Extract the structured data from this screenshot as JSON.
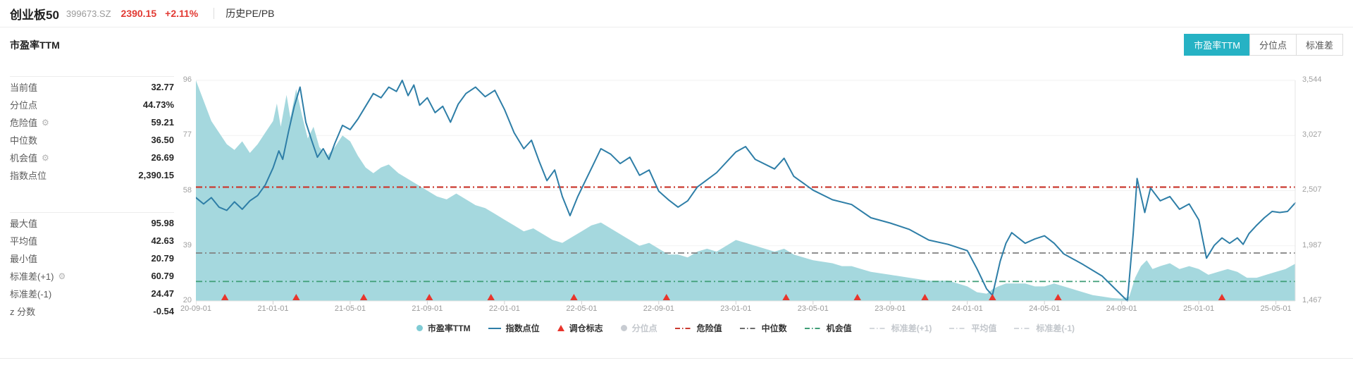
{
  "header": {
    "title": "创业板50",
    "code": "399673.SZ",
    "price": "2390.15",
    "change": "+2.11%",
    "menu": "历史PE/PB"
  },
  "section": {
    "title": "市盈率TTM"
  },
  "tabs": [
    {
      "key": "pe-ttm",
      "label": "市盈率TTM",
      "active": true
    },
    {
      "key": "percentile",
      "label": "分位点",
      "active": false
    },
    {
      "key": "std",
      "label": "标准差",
      "active": false
    }
  ],
  "stats": {
    "group1": [
      {
        "label": "当前值",
        "value": "32.77",
        "gear": false
      },
      {
        "label": "分位点",
        "value": "44.73%",
        "gear": false
      },
      {
        "label": "危险值",
        "value": "59.21",
        "gear": true
      },
      {
        "label": "中位数",
        "value": "36.50",
        "gear": false
      },
      {
        "label": "机会值",
        "value": "26.69",
        "gear": true
      },
      {
        "label": "指数点位",
        "value": "2,390.15",
        "gear": false
      }
    ],
    "group2": [
      {
        "label": "最大值",
        "value": "95.98",
        "gear": false
      },
      {
        "label": "平均值",
        "value": "42.63",
        "gear": false
      },
      {
        "label": "最小值",
        "value": "20.79",
        "gear": false
      },
      {
        "label": "标准差(+1)",
        "value": "60.79",
        "gear": true
      },
      {
        "label": "标准差(-1)",
        "value": "24.47",
        "gear": false
      },
      {
        "label": "z 分数",
        "value": "-0.54",
        "gear": false
      }
    ]
  },
  "chart_data": {
    "type": "area",
    "x_unit": "months since 2020-09-01",
    "x_domain": [
      0,
      57
    ],
    "x_ticks": {
      "positions": [
        0,
        4,
        8,
        12,
        16,
        20,
        24,
        28,
        32,
        36,
        40,
        44,
        48,
        52,
        56
      ],
      "labels": [
        "20-09-01",
        "21-01-01",
        "21-05-01",
        "21-09-01",
        "22-01-01",
        "22-05-01",
        "22-09-01",
        "23-01-01",
        "23-05-01",
        "23-09-01",
        "24-01-01",
        "24-05-01",
        "24-09-01",
        "25-01-01",
        "25-05-01"
      ]
    },
    "y_left": {
      "ticks": [
        96,
        77,
        58,
        39,
        20
      ],
      "labels": [
        "96",
        "77",
        "58",
        "39",
        "20"
      ],
      "range": [
        20,
        96
      ]
    },
    "y_right": {
      "ticks": [
        3544,
        3027,
        2507,
        1987,
        1467
      ],
      "labels": [
        "3,544",
        "3,027",
        "2,507",
        "1,987",
        "1,467"
      ],
      "range": [
        1467,
        3544
      ]
    },
    "reference_lines": [
      {
        "name": "危险值",
        "value": 59.21,
        "color": "#cb3b31",
        "width": 2.2
      },
      {
        "name": "中位数",
        "value": 36.5,
        "color": "#818181",
        "width": 1.8
      },
      {
        "name": "机会值",
        "value": 26.69,
        "color": "#3f9e77",
        "width": 1.8
      }
    ],
    "series": [
      {
        "name": "市盈率TTM",
        "type": "area",
        "axis": "left",
        "color": "#a5d8de",
        "points": [
          [
            0,
            96
          ],
          [
            0.4,
            89
          ],
          [
            0.8,
            82
          ],
          [
            1.2,
            78
          ],
          [
            1.6,
            74
          ],
          [
            2,
            72
          ],
          [
            2.4,
            75
          ],
          [
            2.8,
            71
          ],
          [
            3.2,
            74
          ],
          [
            3.6,
            78
          ],
          [
            4,
            82
          ],
          [
            4.2,
            88
          ],
          [
            4.4,
            80
          ],
          [
            4.7,
            91
          ],
          [
            4.9,
            83
          ],
          [
            5.2,
            93
          ],
          [
            5.5,
            84
          ],
          [
            5.8,
            76
          ],
          [
            6.1,
            80
          ],
          [
            6.4,
            73
          ],
          [
            6.8,
            70
          ],
          [
            7.2,
            73
          ],
          [
            7.6,
            77
          ],
          [
            8,
            75
          ],
          [
            8.4,
            70
          ],
          [
            8.8,
            66
          ],
          [
            9.2,
            64
          ],
          [
            9.6,
            66
          ],
          [
            10,
            67
          ],
          [
            10.5,
            64
          ],
          [
            11,
            62
          ],
          [
            11.5,
            60
          ],
          [
            12,
            58
          ],
          [
            12.5,
            56
          ],
          [
            13,
            55
          ],
          [
            13.5,
            57
          ],
          [
            14,
            55
          ],
          [
            14.5,
            53
          ],
          [
            15,
            52
          ],
          [
            15.5,
            50
          ],
          [
            16,
            48
          ],
          [
            16.5,
            46
          ],
          [
            17,
            44
          ],
          [
            17.5,
            45
          ],
          [
            18,
            43
          ],
          [
            18.5,
            41
          ],
          [
            19,
            40
          ],
          [
            19.5,
            42
          ],
          [
            20,
            44
          ],
          [
            20.5,
            46
          ],
          [
            21,
            47
          ],
          [
            21.5,
            45
          ],
          [
            22,
            43
          ],
          [
            22.5,
            41
          ],
          [
            23,
            39
          ],
          [
            23.5,
            40
          ],
          [
            24,
            38
          ],
          [
            24.5,
            36
          ],
          [
            25,
            36
          ],
          [
            25.5,
            35
          ],
          [
            26,
            37
          ],
          [
            26.5,
            38
          ],
          [
            27,
            37
          ],
          [
            27.5,
            39
          ],
          [
            28,
            41
          ],
          [
            28.5,
            40
          ],
          [
            29,
            39
          ],
          [
            29.5,
            38
          ],
          [
            30,
            37
          ],
          [
            30.5,
            38
          ],
          [
            31,
            36
          ],
          [
            31.5,
            35
          ],
          [
            32,
            34
          ],
          [
            33,
            33
          ],
          [
            33.5,
            32
          ],
          [
            34,
            32
          ],
          [
            34.5,
            31
          ],
          [
            35,
            30
          ],
          [
            36,
            29
          ],
          [
            37,
            28
          ],
          [
            38,
            27
          ],
          [
            39,
            27
          ],
          [
            39.5,
            26
          ],
          [
            40,
            25
          ],
          [
            40.5,
            23
          ],
          [
            41,
            22.5
          ],
          [
            41.3,
            24
          ],
          [
            41.6,
            25
          ],
          [
            42,
            26
          ],
          [
            42.5,
            26
          ],
          [
            43,
            26
          ],
          [
            43.5,
            25
          ],
          [
            44,
            25
          ],
          [
            44.5,
            26
          ],
          [
            45,
            25
          ],
          [
            45.5,
            24
          ],
          [
            46,
            23
          ],
          [
            46.5,
            22
          ],
          [
            47,
            21.5
          ],
          [
            47.5,
            21
          ],
          [
            48,
            20.8
          ],
          [
            48.4,
            21.5
          ],
          [
            48.7,
            28
          ],
          [
            49,
            32
          ],
          [
            49.3,
            34
          ],
          [
            49.6,
            31
          ],
          [
            50,
            32
          ],
          [
            50.5,
            33
          ],
          [
            51,
            31
          ],
          [
            51.5,
            32
          ],
          [
            52,
            31
          ],
          [
            52.5,
            29
          ],
          [
            53,
            30
          ],
          [
            53.5,
            31
          ],
          [
            54,
            30
          ],
          [
            54.5,
            28
          ],
          [
            55,
            28
          ],
          [
            55.5,
            29
          ],
          [
            56,
            30
          ],
          [
            56.5,
            31
          ],
          [
            57,
            32.8
          ]
        ]
      },
      {
        "name": "指数点位",
        "type": "line",
        "axis": "right",
        "color": "#2e7ea7",
        "points": [
          [
            0,
            2440
          ],
          [
            0.4,
            2380
          ],
          [
            0.8,
            2440
          ],
          [
            1.2,
            2350
          ],
          [
            1.6,
            2320
          ],
          [
            2,
            2400
          ],
          [
            2.4,
            2330
          ],
          [
            2.8,
            2410
          ],
          [
            3.2,
            2460
          ],
          [
            3.6,
            2560
          ],
          [
            4,
            2720
          ],
          [
            4.3,
            2880
          ],
          [
            4.5,
            2800
          ],
          [
            4.8,
            3060
          ],
          [
            5.1,
            3300
          ],
          [
            5.4,
            3480
          ],
          [
            5.7,
            3150
          ],
          [
            6,
            2980
          ],
          [
            6.3,
            2820
          ],
          [
            6.6,
            2900
          ],
          [
            6.9,
            2800
          ],
          [
            7.2,
            2950
          ],
          [
            7.6,
            3120
          ],
          [
            8,
            3080
          ],
          [
            8.4,
            3180
          ],
          [
            8.8,
            3300
          ],
          [
            9.2,
            3420
          ],
          [
            9.6,
            3380
          ],
          [
            10,
            3480
          ],
          [
            10.4,
            3440
          ],
          [
            10.7,
            3544
          ],
          [
            11,
            3400
          ],
          [
            11.3,
            3500
          ],
          [
            11.6,
            3310
          ],
          [
            12,
            3380
          ],
          [
            12.4,
            3240
          ],
          [
            12.8,
            3300
          ],
          [
            13.2,
            3150
          ],
          [
            13.6,
            3320
          ],
          [
            14,
            3420
          ],
          [
            14.5,
            3480
          ],
          [
            15,
            3390
          ],
          [
            15.5,
            3450
          ],
          [
            16,
            3270
          ],
          [
            16.5,
            3050
          ],
          [
            17,
            2900
          ],
          [
            17.4,
            2980
          ],
          [
            17.8,
            2780
          ],
          [
            18.2,
            2600
          ],
          [
            18.6,
            2700
          ],
          [
            19,
            2450
          ],
          [
            19.4,
            2270
          ],
          [
            19.8,
            2450
          ],
          [
            20.2,
            2600
          ],
          [
            20.6,
            2750
          ],
          [
            21,
            2900
          ],
          [
            21.5,
            2850
          ],
          [
            22,
            2760
          ],
          [
            22.5,
            2820
          ],
          [
            23,
            2650
          ],
          [
            23.5,
            2700
          ],
          [
            24,
            2500
          ],
          [
            24.5,
            2420
          ],
          [
            25,
            2350
          ],
          [
            25.5,
            2410
          ],
          [
            26,
            2540
          ],
          [
            27,
            2675
          ],
          [
            28,
            2870
          ],
          [
            28.5,
            2920
          ],
          [
            29,
            2800
          ],
          [
            30,
            2710
          ],
          [
            30.5,
            2810
          ],
          [
            31,
            2640
          ],
          [
            32,
            2510
          ],
          [
            33,
            2420
          ],
          [
            34,
            2375
          ],
          [
            35,
            2250
          ],
          [
            36,
            2200
          ],
          [
            37,
            2140
          ],
          [
            38,
            2040
          ],
          [
            39,
            2000
          ],
          [
            40,
            1940
          ],
          [
            40.5,
            1770
          ],
          [
            41,
            1580
          ],
          [
            41.3,
            1520
          ],
          [
            41.7,
            1840
          ],
          [
            42,
            2010
          ],
          [
            42.3,
            2110
          ],
          [
            43,
            2010
          ],
          [
            43.5,
            2050
          ],
          [
            44,
            2080
          ],
          [
            44.5,
            2010
          ],
          [
            45,
            1910
          ],
          [
            46,
            1810
          ],
          [
            47,
            1700
          ],
          [
            47.5,
            1610
          ],
          [
            48,
            1520
          ],
          [
            48.3,
            1467
          ],
          [
            48.6,
            2100
          ],
          [
            48.8,
            2620
          ],
          [
            49.2,
            2300
          ],
          [
            49.5,
            2530
          ],
          [
            50,
            2410
          ],
          [
            50.5,
            2450
          ],
          [
            51,
            2330
          ],
          [
            51.5,
            2380
          ],
          [
            52,
            2230
          ],
          [
            52.4,
            1870
          ],
          [
            52.8,
            1990
          ],
          [
            53.2,
            2060
          ],
          [
            53.6,
            2010
          ],
          [
            54,
            2060
          ],
          [
            54.3,
            2000
          ],
          [
            54.6,
            2100
          ],
          [
            55,
            2180
          ],
          [
            55.4,
            2250
          ],
          [
            55.8,
            2310
          ],
          [
            56.2,
            2300
          ],
          [
            56.6,
            2310
          ],
          [
            57,
            2390
          ]
        ]
      }
    ],
    "markers": {
      "name": "调仓标志",
      "color": "#e8352c",
      "positions": [
        1.5,
        5.2,
        8.7,
        12.1,
        15.3,
        19.6,
        24.4,
        30.6,
        34.3,
        37.8,
        41.3,
        44.7,
        53.2
      ]
    }
  },
  "legend": [
    {
      "key": "pe-ttm",
      "label": "市盈率TTM",
      "type": "dot",
      "color": "#7fcbd4",
      "disabled": false
    },
    {
      "key": "index-points",
      "label": "指数点位",
      "type": "line",
      "color": "#2e7ea7",
      "disabled": false
    },
    {
      "key": "rebalance-marker",
      "label": "调仓标志",
      "type": "triangle",
      "color": "#e8352c",
      "disabled": false
    },
    {
      "key": "percentile",
      "label": "分位点",
      "type": "dot",
      "color": "#c8ccd2",
      "disabled": true
    },
    {
      "key": "danger",
      "label": "危险值",
      "type": "dash",
      "color": "#cb3b31",
      "disabled": false
    },
    {
      "key": "median",
      "label": "中位数",
      "type": "dash",
      "color": "#6e6e6e",
      "disabled": false
    },
    {
      "key": "opportunity",
      "label": "机会值",
      "type": "dash",
      "color": "#3f9e77",
      "disabled": false
    },
    {
      "key": "std-plus1",
      "label": "标准差(+1)",
      "type": "dash",
      "color": "#d4d7dc",
      "disabled": true
    },
    {
      "key": "mean",
      "label": "平均值",
      "type": "dash",
      "color": "#d4d7dc",
      "disabled": true
    },
    {
      "key": "std-minus1",
      "label": "标准差(-1)",
      "type": "dash",
      "color": "#d4d7dc",
      "disabled": true
    }
  ],
  "colors": {
    "accent": "#26b2c4",
    "up_red": "#e23a33",
    "area": "#a5d8de",
    "line": "#2e7ea7",
    "danger": "#cb3b31",
    "median": "#818181",
    "opportunity": "#3f9e77",
    "marker": "#e8352c",
    "grid": "#f2f2f2",
    "axis": "#e3e3e3",
    "disabled": "#c3c7cc"
  }
}
